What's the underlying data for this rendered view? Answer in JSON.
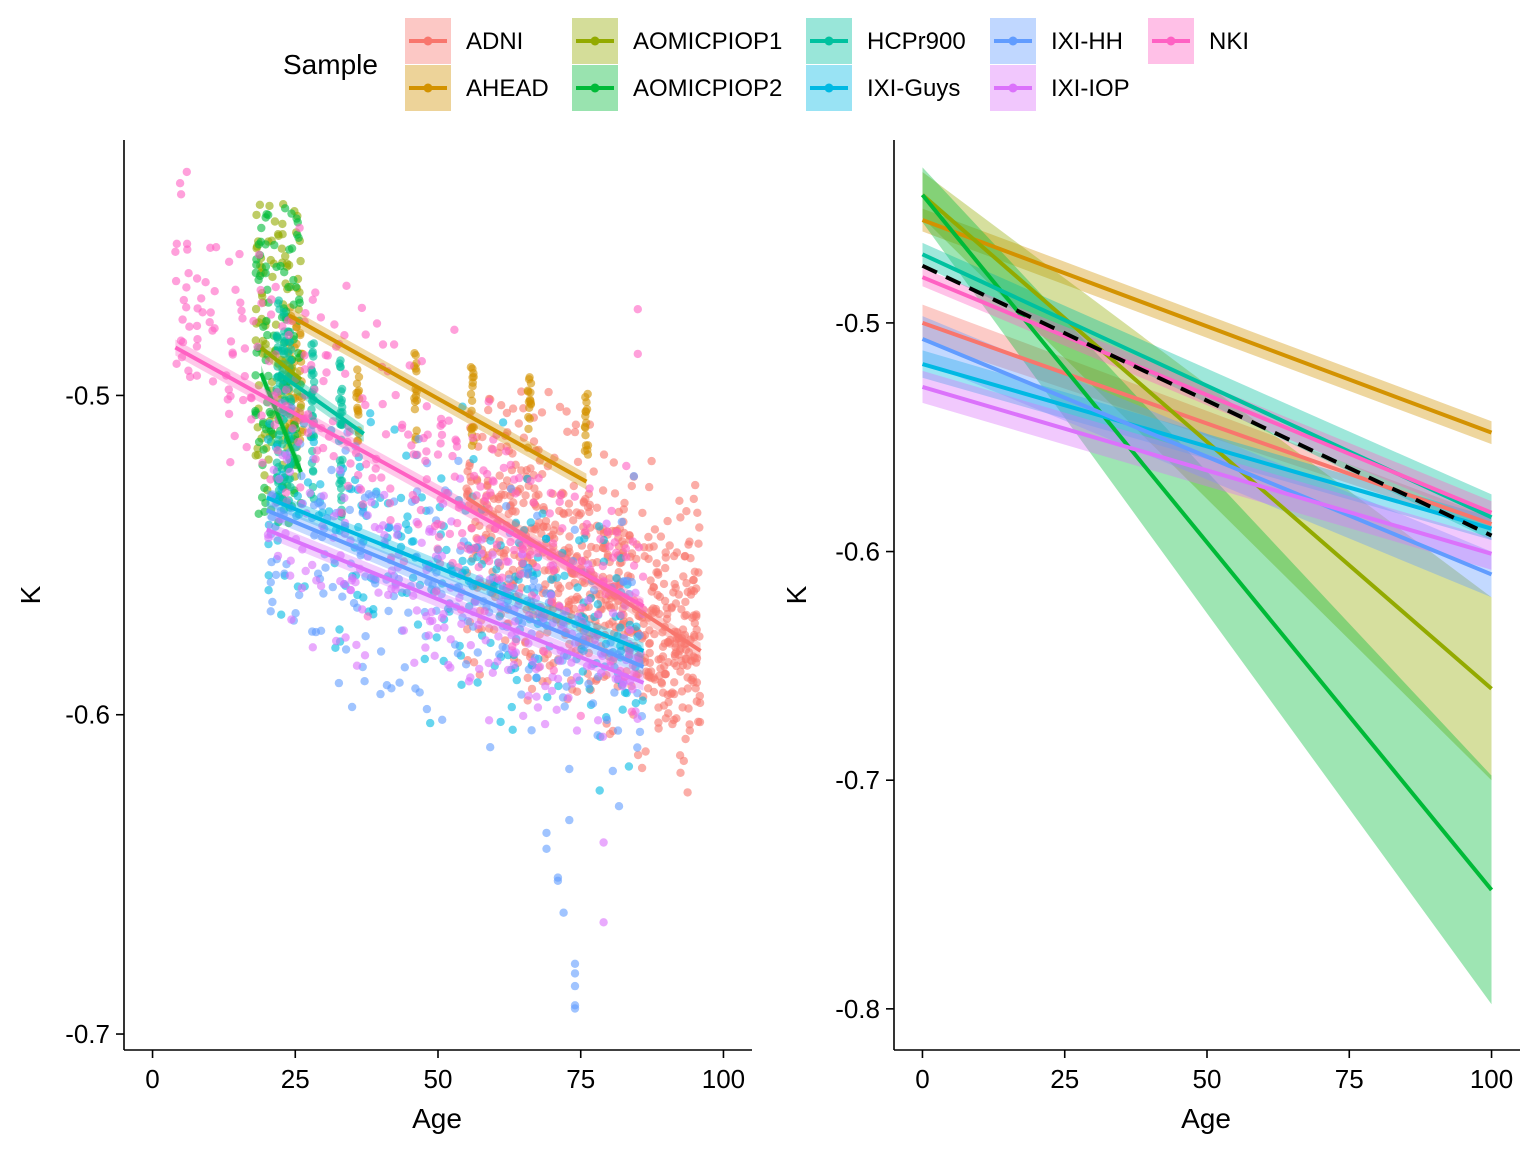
{
  "legend": {
    "title": "Sample",
    "entries": [
      {
        "name": "ADNI",
        "color": "#F8766D"
      },
      {
        "name": "AHEAD",
        "color": "#D39200"
      },
      {
        "name": "AOMICPIOP1",
        "color": "#93AA00"
      },
      {
        "name": "AOMICPIOP2",
        "color": "#00BA38"
      },
      {
        "name": "HCPr900",
        "color": "#00C19F"
      },
      {
        "name": "IXI-Guys",
        "color": "#00B9E3"
      },
      {
        "name": "IXI-HH",
        "color": "#619CFF"
      },
      {
        "name": "IXI-IOP",
        "color": "#DB72FB"
      },
      {
        "name": "NKI",
        "color": "#FF61C3"
      }
    ]
  },
  "chart_data": [
    {
      "type": "scatter",
      "panel": "left",
      "xlabel": "Age",
      "ylabel": "K",
      "xlim": [
        -5,
        105
      ],
      "ylim": [
        -0.705,
        -0.42
      ],
      "xticks": [
        0,
        25,
        50,
        75,
        100
      ],
      "yticks": [
        -0.5,
        -0.6,
        -0.7
      ],
      "xtick_labels": [
        "0",
        "25",
        "50",
        "75",
        "100"
      ],
      "ytick_labels": [
        "-0.5",
        "-0.6",
        "-0.7"
      ],
      "grid": false,
      "series": [
        {
          "name": "ADNI",
          "age_range": [
            55,
            96
          ],
          "k_center_range": [
            -0.54,
            -0.575
          ],
          "spread": 0.02,
          "fit": {
            "x": [
              55,
              96
            ],
            "y": [
              -0.532,
              -0.58
            ]
          }
        },
        {
          "name": "AHEAD",
          "age_groups": [
            24,
            25,
            26,
            36,
            46,
            56,
            66,
            76
          ],
          "k_range": [
            -0.47,
            -0.52
          ],
          "fit": {
            "x": [
              24,
              76
            ],
            "y": [
              -0.475,
              -0.527
            ]
          }
        },
        {
          "name": "AOMICPIOP1",
          "age_range": [
            18,
            26
          ],
          "k_range": [
            -0.44,
            -0.53
          ],
          "fit": {
            "x": [
              19,
              26
            ],
            "y": [
              -0.485,
              -0.495
            ]
          }
        },
        {
          "name": "AOMICPIOP2",
          "age_range": [
            18,
            26
          ],
          "k_range": [
            -0.44,
            -0.54
          ],
          "fit": {
            "x": [
              19,
              26
            ],
            "y": [
              -0.493,
              -0.524
            ]
          }
        },
        {
          "name": "HCPr900",
          "age_groups": [
            22,
            23,
            24,
            28,
            33
          ],
          "k_range": [
            -0.47,
            -0.54
          ],
          "fit": {
            "x": [
              22,
              37
            ],
            "y": [
              -0.493,
              -0.512
            ]
          }
        },
        {
          "name": "IXI-Guys",
          "age_range": [
            20,
            86
          ],
          "k_center_range": [
            -0.528,
            -0.58
          ],
          "spread": 0.02,
          "fit": {
            "x": [
              20,
              86
            ],
            "y": [
              -0.532,
              -0.58
            ]
          }
        },
        {
          "name": "IXI-HH",
          "age_range": [
            20,
            86
          ],
          "k_center_range": [
            -0.535,
            -0.585
          ],
          "spread": 0.02,
          "outliers": [
            [
              69,
              -0.637
            ],
            [
              69,
              -0.642
            ],
            [
              71,
              -0.651
            ],
            [
              71,
              -0.652
            ],
            [
              72,
              -0.662
            ],
            [
              73,
              -0.633
            ],
            [
              73,
              -0.617
            ],
            [
              74,
              -0.678
            ],
            [
              74,
              -0.681
            ],
            [
              74,
              -0.685
            ],
            [
              74,
              -0.691
            ],
            [
              74,
              -0.692
            ]
          ],
          "fit": {
            "x": [
              20,
              86
            ],
            "y": [
              -0.536,
              -0.585
            ]
          }
        },
        {
          "name": "IXI-IOP",
          "age_range": [
            20,
            86
          ],
          "k_center_range": [
            -0.54,
            -0.59
          ],
          "spread": 0.015,
          "outliers": [
            [
              79,
              -0.64
            ],
            [
              79,
              -0.665
            ]
          ],
          "fit": {
            "x": [
              20,
              86
            ],
            "y": [
              -0.542,
              -0.59
            ]
          }
        },
        {
          "name": "NKI",
          "age_range": [
            4,
            86
          ],
          "k_center_range": [
            -0.475,
            -0.565
          ],
          "spread": 0.018,
          "outliers": [
            [
              4,
              -0.455
            ],
            [
              5,
              -0.437
            ],
            [
              6,
              -0.43
            ],
            [
              85,
              -0.473
            ],
            [
              85,
              -0.487
            ]
          ],
          "fit": {
            "x": [
              4,
              86
            ],
            "y": [
              -0.485,
              -0.566
            ]
          }
        }
      ]
    },
    {
      "type": "line",
      "panel": "right",
      "xlabel": "Age",
      "ylabel": "K",
      "xlim": [
        -5,
        105
      ],
      "ylim": [
        -0.818,
        -0.42
      ],
      "xticks": [
        0,
        25,
        50,
        75,
        100
      ],
      "yticks": [
        -0.5,
        -0.6,
        -0.7,
        -0.8
      ],
      "xtick_labels": [
        "0",
        "25",
        "50",
        "75",
        "100"
      ],
      "ytick_labels": [
        "-0.5",
        "-0.6",
        "-0.7",
        "-0.8"
      ],
      "grid": false,
      "series": [
        {
          "name": "ADNI",
          "x": [
            0,
            100
          ],
          "y": [
            -0.5,
            -0.588
          ],
          "ci": [
            0.008,
            0.003
          ]
        },
        {
          "name": "AHEAD",
          "x": [
            0,
            100
          ],
          "y": [
            -0.455,
            -0.548
          ],
          "ci": [
            0.005,
            0.005
          ]
        },
        {
          "name": "AOMICPIOP1",
          "x": [
            0,
            100
          ],
          "y": [
            -0.444,
            -0.66
          ],
          "ci": [
            0.01,
            0.04
          ]
        },
        {
          "name": "AOMICPIOP2",
          "x": [
            0,
            100
          ],
          "y": [
            -0.444,
            -0.748
          ],
          "ci": [
            0.012,
            0.05
          ]
        },
        {
          "name": "HCPr900",
          "x": [
            0,
            100
          ],
          "y": [
            -0.47,
            -0.585
          ],
          "ci": [
            0.005,
            0.01
          ]
        },
        {
          "name": "IXI-Guys",
          "x": [
            0,
            100
          ],
          "y": [
            -0.518,
            -0.59
          ],
          "ci": [
            0.006,
            0.005
          ]
        },
        {
          "name": "IXI-HH",
          "x": [
            0,
            100
          ],
          "y": [
            -0.507,
            -0.61
          ],
          "ci": [
            0.01,
            0.01
          ]
        },
        {
          "name": "IXI-IOP",
          "x": [
            0,
            100
          ],
          "y": [
            -0.528,
            -0.601
          ],
          "ci": [
            0.007,
            0.007
          ]
        },
        {
          "name": "NKI",
          "x": [
            0,
            100
          ],
          "y": [
            -0.48,
            -0.583
          ],
          "ci": [
            0.004,
            0.005
          ]
        },
        {
          "name": "",
          "x": [
            0,
            100
          ],
          "y": [
            -0.475,
            -0.593
          ],
          "style": "dashed",
          "color": "#000000"
        }
      ]
    }
  ]
}
